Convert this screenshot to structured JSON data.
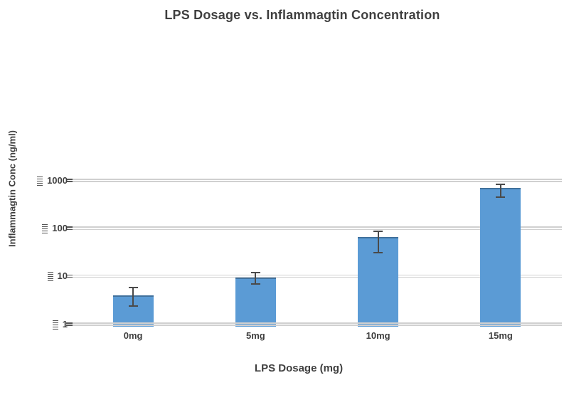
{
  "chart_data": {
    "type": "bar",
    "title": "LPS Dosage vs. Inflammagtin Concentration",
    "xlabel": "LPS Dosage (mg)",
    "ylabel": "Inflammagtin Conc (ng/ml)",
    "categories": [
      "0mg",
      "5mg",
      "10mg",
      "15mg"
    ],
    "values": [
      4,
      9.5,
      65,
      700
    ],
    "error_low": [
      2.4,
      7,
      31,
      450
    ],
    "error_high": [
      5.8,
      12,
      88,
      830
    ],
    "yscale": "log",
    "yticks": [
      1,
      10,
      100,
      1000
    ],
    "ytick_labels": [
      "1",
      "10",
      "100",
      "1000"
    ],
    "ylim": [
      1,
      1000
    ],
    "grid": "horizontal double gridlines at each decade",
    "legend": "none",
    "colors": {
      "bar": "#5B9BD5",
      "bar_edge": "#41719C",
      "error": "#4A4A4A",
      "gridline": "#D0D0D0",
      "text": "#3F3F3F",
      "background": "#FFFFFF"
    }
  }
}
